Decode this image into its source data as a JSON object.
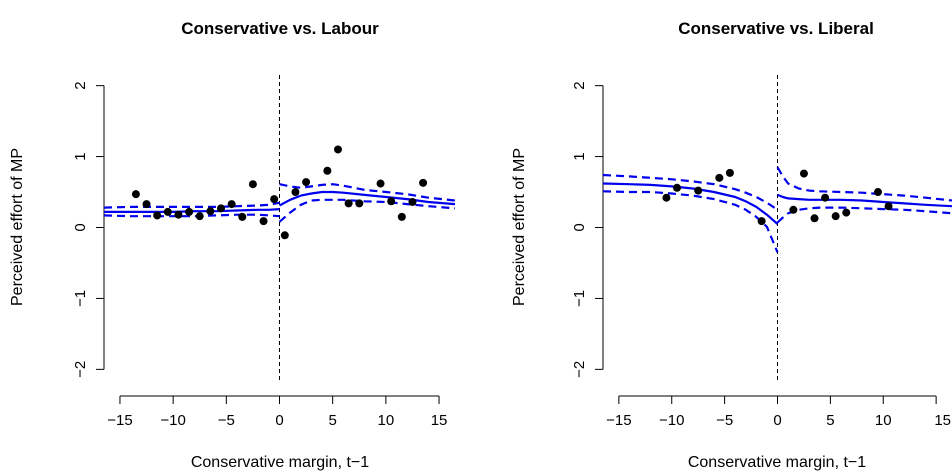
{
  "chart_data": [
    {
      "type": "scatter",
      "title": "Conservative vs. Labour",
      "xlabel": "Conservative margin, t−1",
      "ylabel": "Perceived effort of MP",
      "xlim": [
        -16.5,
        16.5
      ],
      "ylim": [
        -2.15,
        2.15
      ],
      "xticks": [
        -15,
        -10,
        -5,
        0,
        5,
        10,
        15
      ],
      "xtick_labels": [
        "−15",
        "−10",
        "−5",
        "0",
        "5",
        "10",
        "15"
      ],
      "yticks": [
        -2,
        -1,
        0,
        1,
        2
      ],
      "ytick_labels": [
        "−2",
        "−1",
        "0",
        "1",
        "2"
      ],
      "cutoff": 0,
      "grid": false,
      "line_color": "#0000ee",
      "point_color": "#000000",
      "points": [
        {
          "x": -13.5,
          "y": 0.47
        },
        {
          "x": -12.5,
          "y": 0.33
        },
        {
          "x": -11.5,
          "y": 0.17
        },
        {
          "x": -10.5,
          "y": 0.22
        },
        {
          "x": -9.5,
          "y": 0.18
        },
        {
          "x": -8.5,
          "y": 0.22
        },
        {
          "x": -7.5,
          "y": 0.16
        },
        {
          "x": -6.5,
          "y": 0.23
        },
        {
          "x": -5.5,
          "y": 0.27
        },
        {
          "x": -4.5,
          "y": 0.33
        },
        {
          "x": -3.5,
          "y": 0.15
        },
        {
          "x": -2.5,
          "y": 0.61
        },
        {
          "x": -1.5,
          "y": 0.09
        },
        {
          "x": -0.5,
          "y": 0.4
        },
        {
          "x": 0.5,
          "y": -0.11
        },
        {
          "x": 1.5,
          "y": 0.5
        },
        {
          "x": 2.5,
          "y": 0.64
        },
        {
          "x": 4.5,
          "y": 0.8
        },
        {
          "x": 5.5,
          "y": 1.1
        },
        {
          "x": 6.5,
          "y": 0.34
        },
        {
          "x": 7.5,
          "y": 0.34
        },
        {
          "x": 9.5,
          "y": 0.62
        },
        {
          "x": 10.5,
          "y": 0.37
        },
        {
          "x": 11.5,
          "y": 0.15
        },
        {
          "x": 12.5,
          "y": 0.36
        },
        {
          "x": 13.5,
          "y": 0.63
        }
      ],
      "fit_left": {
        "x": [
          -16.5,
          -14,
          -12,
          -10,
          -8,
          -6,
          -4,
          -2,
          -1,
          0
        ],
        "y": [
          0.22,
          0.22,
          0.22,
          0.22,
          0.23,
          0.23,
          0.24,
          0.25,
          0.25,
          0.26
        ]
      },
      "ci_left_upper": {
        "x": [
          -16.5,
          -14,
          -12,
          -10,
          -8,
          -6,
          -4,
          -2,
          -1,
          0
        ],
        "y": [
          0.28,
          0.29,
          0.29,
          0.29,
          0.29,
          0.29,
          0.3,
          0.31,
          0.32,
          0.35
        ]
      },
      "ci_left_lower": {
        "x": [
          -16.5,
          -14,
          -12,
          -10,
          -8,
          -6,
          -4,
          -2,
          -1,
          0
        ],
        "y": [
          0.17,
          0.16,
          0.16,
          0.16,
          0.16,
          0.17,
          0.18,
          0.18,
          0.17,
          0.16
        ]
      },
      "fit_right": {
        "x": [
          0,
          1,
          2,
          3,
          4,
          5,
          6,
          8,
          10,
          12,
          14,
          16.5
        ],
        "y": [
          0.31,
          0.39,
          0.45,
          0.48,
          0.5,
          0.5,
          0.49,
          0.46,
          0.43,
          0.4,
          0.36,
          0.33
        ]
      },
      "ci_right_upper": {
        "x": [
          0,
          1,
          2,
          3,
          4,
          5,
          6,
          8,
          10,
          12,
          14,
          16.5
        ],
        "y": [
          0.61,
          0.58,
          0.56,
          0.58,
          0.6,
          0.61,
          0.59,
          0.53,
          0.5,
          0.47,
          0.42,
          0.38
        ]
      },
      "ci_right_lower": {
        "x": [
          0,
          1,
          2,
          3,
          4,
          5,
          6,
          8,
          10,
          12,
          14,
          16.5
        ],
        "y": [
          0.08,
          0.21,
          0.32,
          0.38,
          0.39,
          0.39,
          0.39,
          0.37,
          0.36,
          0.33,
          0.3,
          0.27
        ]
      }
    },
    {
      "type": "scatter",
      "title": "Conservative vs. Liberal",
      "xlabel": "Conservative margin, t−1",
      "ylabel": "Perceived effort of MP",
      "xlim": [
        -16.5,
        16.5
      ],
      "ylim": [
        -2.15,
        2.15
      ],
      "xticks": [
        -15,
        -10,
        -5,
        0,
        5,
        10,
        15
      ],
      "xtick_labels": [
        "−15",
        "−10",
        "−5",
        "0",
        "5",
        "10",
        "15"
      ],
      "yticks": [
        -2,
        -1,
        0,
        1,
        2
      ],
      "ytick_labels": [
        "−2",
        "−1",
        "0",
        "1",
        "2"
      ],
      "cutoff": 0,
      "grid": false,
      "line_color": "#0000ee",
      "point_color": "#000000",
      "points": [
        {
          "x": -10.5,
          "y": 0.42
        },
        {
          "x": -9.5,
          "y": 0.56
        },
        {
          "x": -7.5,
          "y": 0.52
        },
        {
          "x": -5.5,
          "y": 0.7
        },
        {
          "x": -4.5,
          "y": 0.77
        },
        {
          "x": -1.5,
          "y": 0.09
        },
        {
          "x": 1.5,
          "y": 0.25
        },
        {
          "x": 2.5,
          "y": 0.76
        },
        {
          "x": 3.5,
          "y": 0.13
        },
        {
          "x": 4.5,
          "y": 0.42
        },
        {
          "x": 5.5,
          "y": 0.16
        },
        {
          "x": 6.5,
          "y": 0.21
        },
        {
          "x": 9.5,
          "y": 0.5
        },
        {
          "x": 10.5,
          "y": 0.3
        }
      ],
      "fit_left": {
        "x": [
          -16.5,
          -14,
          -12,
          -10,
          -8,
          -6,
          -4,
          -3,
          -2,
          -1,
          0
        ],
        "y": [
          0.62,
          0.61,
          0.6,
          0.58,
          0.55,
          0.5,
          0.43,
          0.37,
          0.29,
          0.18,
          0.05
        ]
      },
      "ci_left_upper": {
        "x": [
          -16.5,
          -14,
          -12,
          -10,
          -8,
          -6,
          -4,
          -3,
          -2,
          -1,
          0
        ],
        "y": [
          0.74,
          0.72,
          0.7,
          0.68,
          0.65,
          0.61,
          0.54,
          0.49,
          0.43,
          0.35,
          0.25
        ]
      },
      "ci_left_lower": {
        "x": [
          -16.5,
          -14,
          -12,
          -10,
          -8,
          -6,
          -4,
          -3,
          -2,
          -1,
          0
        ],
        "y": [
          0.51,
          0.5,
          0.5,
          0.48,
          0.45,
          0.4,
          0.32,
          0.25,
          0.15,
          0.01,
          -0.35
        ]
      },
      "fit_right": {
        "x": [
          0,
          0.5,
          1,
          2,
          3,
          4,
          6,
          8,
          10,
          12,
          14,
          16.5
        ],
        "y": [
          0.46,
          0.43,
          0.41,
          0.4,
          0.39,
          0.39,
          0.39,
          0.38,
          0.36,
          0.34,
          0.32,
          0.3
        ]
      },
      "ci_right_upper": {
        "x": [
          0,
          0.5,
          1,
          2,
          3,
          4,
          6,
          8,
          10,
          12,
          14,
          16.5
        ],
        "y": [
          0.85,
          0.72,
          0.62,
          0.55,
          0.52,
          0.51,
          0.5,
          0.49,
          0.47,
          0.45,
          0.42,
          0.38
        ]
      },
      "ci_right_lower": {
        "x": [
          0,
          0.5,
          1,
          2,
          3,
          4,
          6,
          8,
          10,
          12,
          14,
          16.5
        ],
        "y": [
          0.07,
          0.14,
          0.2,
          0.25,
          0.27,
          0.28,
          0.28,
          0.27,
          0.26,
          0.25,
          0.23,
          0.2
        ]
      }
    }
  ]
}
